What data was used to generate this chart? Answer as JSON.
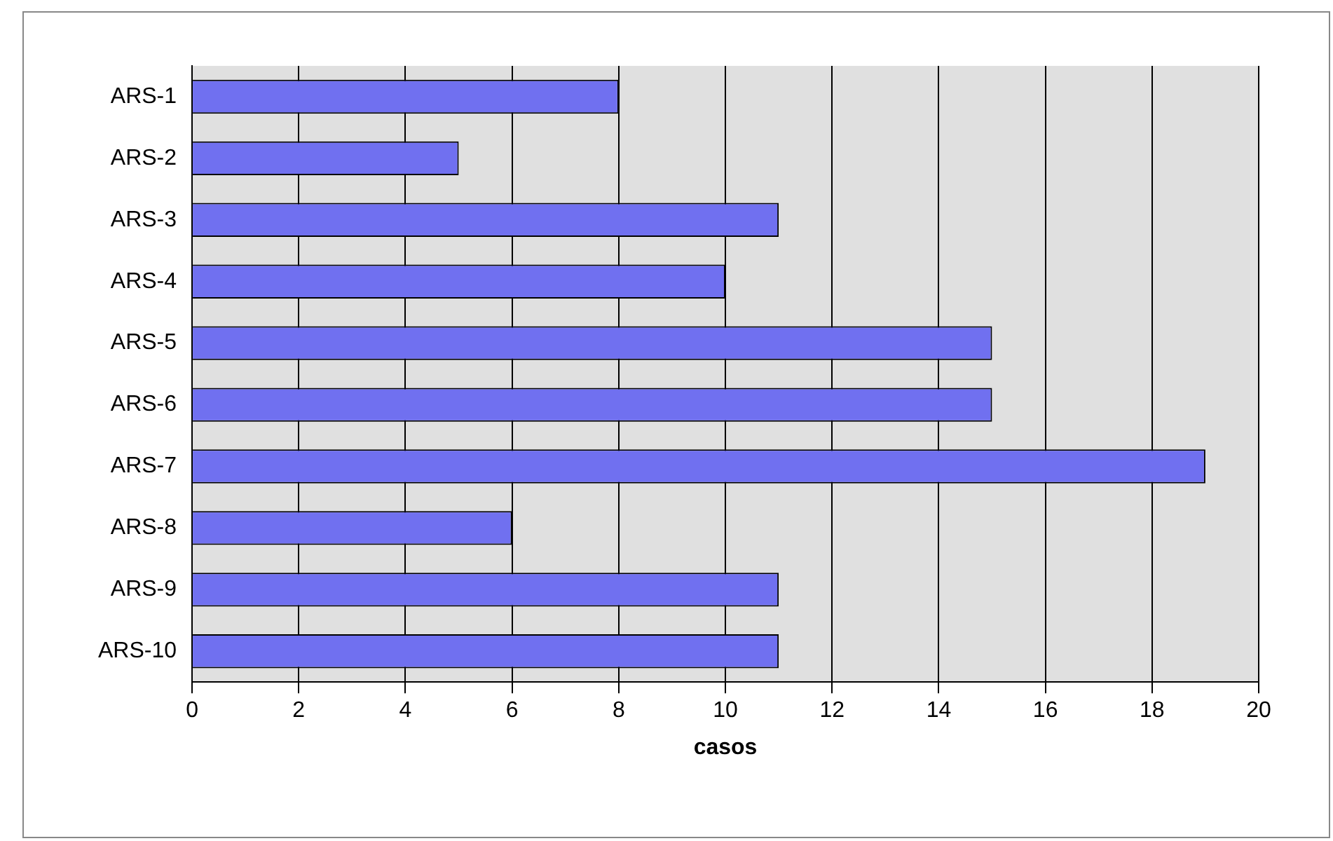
{
  "chart_data": {
    "type": "bar",
    "orientation": "horizontal",
    "xlabel": "casos",
    "categories": [
      "ARS-1",
      "ARS-2",
      "ARS-3",
      "ARS-4",
      "ARS-5",
      "ARS-6",
      "ARS-7",
      "ARS-8",
      "ARS-9",
      "ARS-10"
    ],
    "values": [
      8,
      5,
      11,
      10,
      15,
      15,
      19,
      6,
      11,
      11
    ],
    "color": "#7070f0",
    "xlim": [
      0,
      20
    ],
    "xticks": [
      0,
      2,
      4,
      6,
      8,
      10,
      12,
      14,
      16,
      18,
      20
    ],
    "grid": "x",
    "legend": false
  }
}
